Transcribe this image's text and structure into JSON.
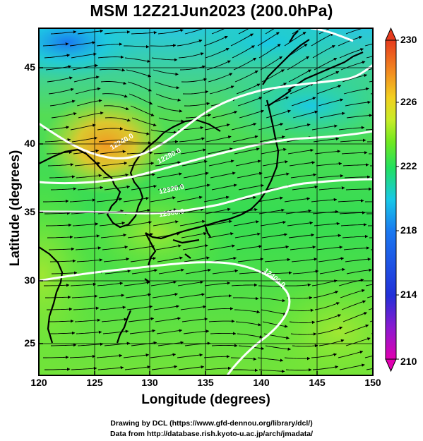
{
  "title": "MSM 12Z21Jun2023 (200.0hPa)",
  "axes": {
    "xlabel": "Longitude (degrees)",
    "ylabel": "Latitude  (degrees)",
    "x_ticks": [
      "120",
      "125",
      "130",
      "135",
      "140",
      "145",
      "150"
    ],
    "y_ticks": [
      "25",
      "30",
      "35",
      "40",
      "45"
    ]
  },
  "colorbar": {
    "ticks": [
      "230",
      "226",
      "222",
      "218",
      "214",
      "210"
    ],
    "range": [
      210,
      230
    ],
    "colors": [
      "#e000b0",
      "#8a1ad0",
      "#2230d8",
      "#1a78f0",
      "#18c8e8",
      "#22e060",
      "#6fe820",
      "#c8ec28",
      "#f2d020",
      "#f28c20",
      "#e63b1e"
    ]
  },
  "contour_labels": [
    "12240.0",
    "12280.0",
    "12320.0",
    "12360.0",
    "12400.0"
  ],
  "footer": {
    "line1": "Drawing by DCL (https://www.gfd-dennou.org/library/dcl/)",
    "line2": "Data from http://database.rish.kyoto-u.ac.jp/arch/jmadata/"
  },
  "map_extent": {
    "lon": [
      120,
      150
    ],
    "lat": [
      22.5,
      47.5
    ]
  }
}
